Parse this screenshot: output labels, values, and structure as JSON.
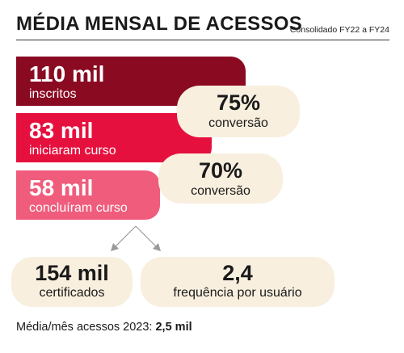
{
  "header": {
    "title": "MÉDIA MENSAL DE ACESSOS",
    "subtitle": "Consolidado FY22 a FY24"
  },
  "funnel": [
    {
      "value": "110 mil",
      "label": "inscritos",
      "color": "#8a0a22"
    },
    {
      "value": "83 mil",
      "label": "iniciaram curso",
      "color": "#e6103e"
    },
    {
      "value": "58 mil",
      "label": "concluíram curso",
      "color": "#ef5c7c"
    }
  ],
  "conversions": [
    {
      "value": "75%",
      "label": "conversão"
    },
    {
      "value": "70%",
      "label": "conversão"
    }
  ],
  "results": [
    {
      "value": "154 mil",
      "label": "certificados"
    },
    {
      "value": "2,4",
      "label": "frequência por usuário"
    }
  ],
  "footer": {
    "label": "Média/mês acessos 2023:",
    "value": "2,5 mil"
  },
  "colors": {
    "pill_background": "#f8efdf",
    "arrow": "#9a9a9a"
  }
}
